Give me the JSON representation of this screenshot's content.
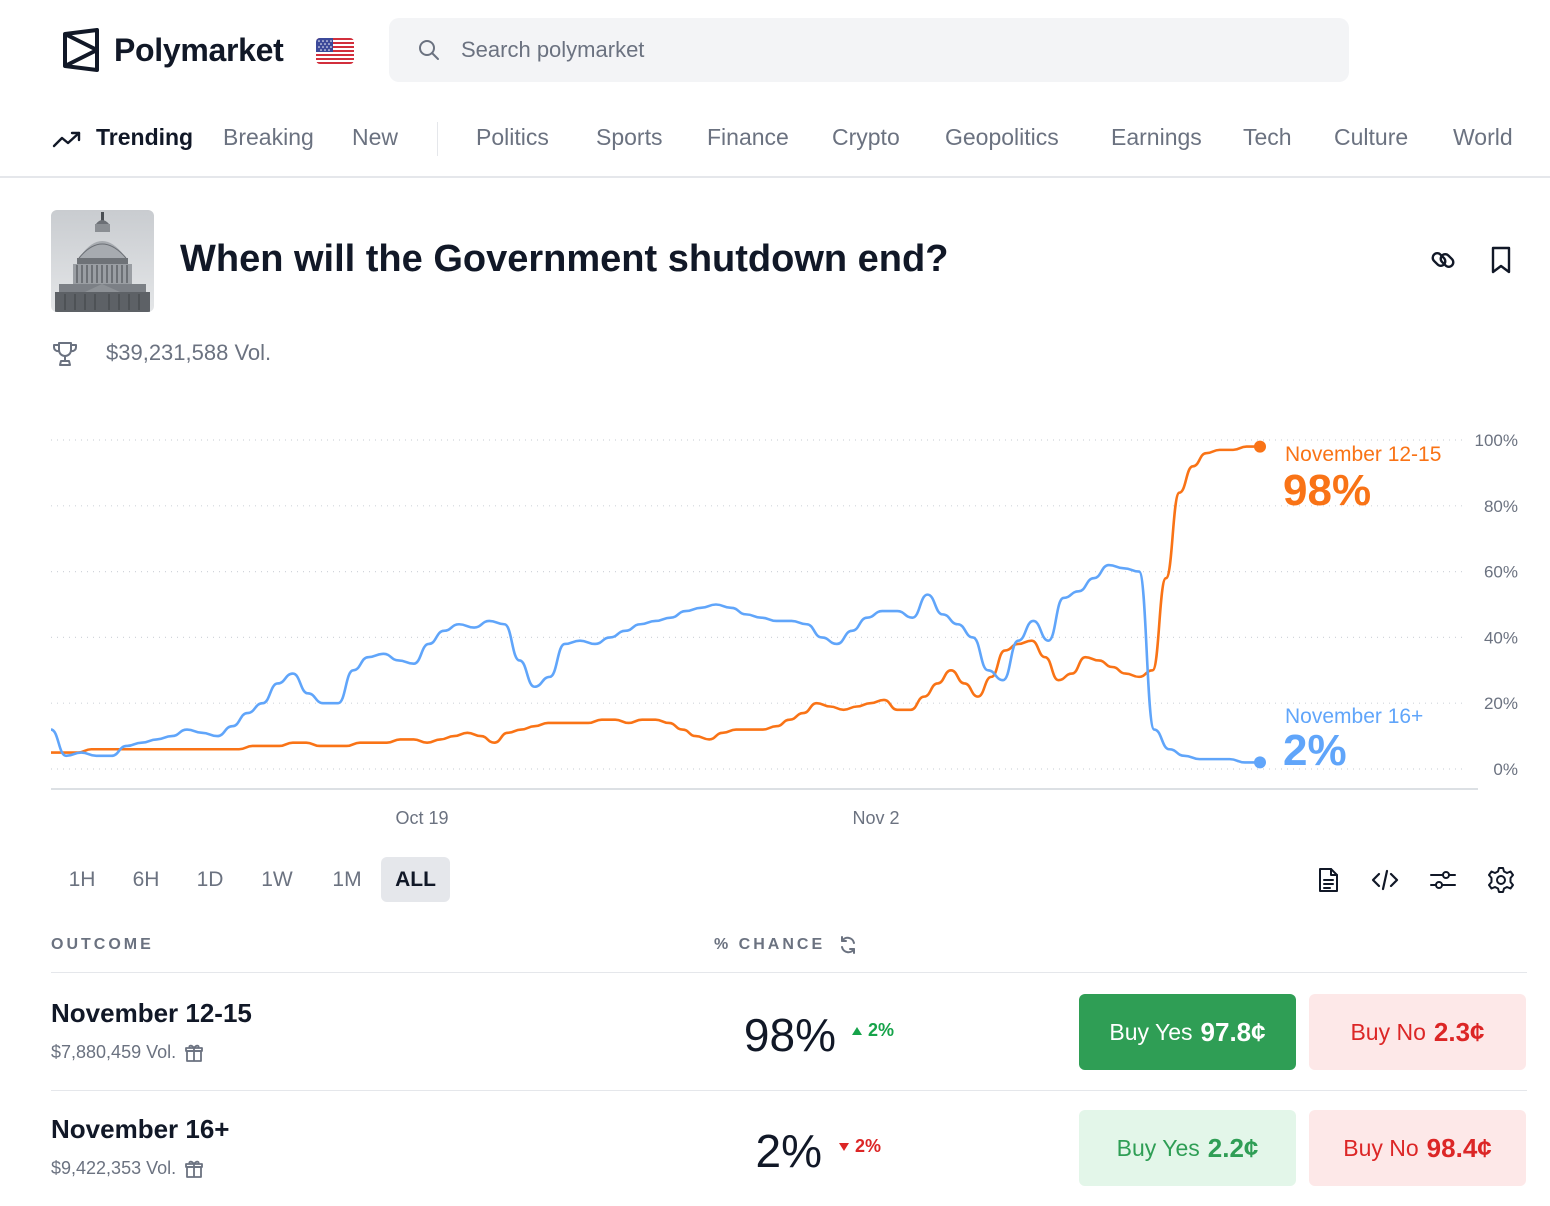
{
  "header": {
    "brand": "Polymarket",
    "search_placeholder": "Search polymarket"
  },
  "nav": {
    "items": [
      {
        "label": "Trending"
      },
      {
        "label": "Breaking"
      },
      {
        "label": "New"
      },
      {
        "label": "Politics"
      },
      {
        "label": "Sports"
      },
      {
        "label": "Finance"
      },
      {
        "label": "Crypto"
      },
      {
        "label": "Geopolitics"
      },
      {
        "label": "Earnings"
      },
      {
        "label": "Tech"
      },
      {
        "label": "Culture"
      },
      {
        "label": "World"
      }
    ]
  },
  "event": {
    "title": "When will the Government shutdown end?",
    "volume": "$39,231,588 Vol."
  },
  "chart_data": {
    "type": "line",
    "x_ticks": [
      "Oct 19",
      "Nov 2"
    ],
    "y_ticks": [
      "100%",
      "80%",
      "60%",
      "40%",
      "20%",
      "0%"
    ],
    "ylim": [
      0,
      100
    ],
    "grid": true,
    "colors": {
      "November 12-15": "#f97316",
      "November 16+": "#60a5fa"
    },
    "series": [
      {
        "name": "November 12-15",
        "current_label": "98%",
        "values": [
          5,
          5,
          5,
          6,
          6,
          6,
          6,
          6,
          6,
          6,
          6,
          6,
          6,
          6,
          6,
          7,
          7,
          7,
          8,
          8,
          7,
          7,
          7,
          8,
          8,
          8,
          9,
          9,
          8,
          9,
          10,
          11,
          10,
          8,
          11,
          12,
          13,
          14,
          14,
          14,
          14,
          15,
          15,
          14,
          15,
          15,
          14,
          12,
          10,
          9,
          11,
          12,
          12,
          12,
          13,
          15,
          17,
          20,
          19,
          18,
          19,
          20,
          21,
          18,
          18,
          22,
          26,
          30,
          26,
          22,
          28,
          36,
          38,
          39,
          34,
          27,
          29,
          34,
          33,
          31,
          29,
          28,
          30,
          58,
          84,
          92,
          96,
          97,
          97,
          98,
          98
        ]
      },
      {
        "name": "November 16+",
        "current_label": "2%",
        "values": [
          12,
          4,
          5,
          4,
          4,
          7,
          8,
          9,
          10,
          12,
          11,
          10,
          13,
          17,
          20,
          26,
          29,
          23,
          20,
          20,
          30,
          34,
          35,
          33,
          32,
          38,
          42,
          44,
          43,
          45,
          44,
          33,
          25,
          28,
          38,
          39,
          38,
          40,
          42,
          44,
          45,
          46,
          48,
          49,
          50,
          49,
          47,
          46,
          45,
          45,
          44,
          40,
          38,
          42,
          46,
          48,
          48,
          46,
          53,
          47,
          44,
          40,
          30,
          27,
          39,
          45,
          39,
          52,
          54,
          58,
          62,
          61,
          60,
          12,
          6,
          4,
          3,
          3,
          3,
          2,
          2
        ]
      }
    ]
  },
  "range_tabs": [
    "1H",
    "6H",
    "1D",
    "1W",
    "1M",
    "ALL"
  ],
  "table": {
    "outcome_header": "OUTCOME",
    "chance_header": "% CHANCE",
    "rows": [
      {
        "name": "November 12-15",
        "volume": "$7,880,459 Vol.",
        "pct": "98%",
        "change": "2%",
        "direction": "up",
        "buy_yes_label": "Buy Yes",
        "buy_yes_price": "97.8¢",
        "buy_no_label": "Buy No",
        "buy_no_price": "2.3¢"
      },
      {
        "name": "November 16+",
        "volume": "$9,422,353 Vol.",
        "pct": "2%",
        "change": "2%",
        "direction": "down",
        "buy_yes_label": "Buy Yes",
        "buy_yes_price": "2.2¢",
        "buy_no_label": "Buy No",
        "buy_no_price": "98.4¢"
      }
    ]
  },
  "colors": {
    "up": "#16a34a",
    "down": "#dc2626",
    "buy_yes_active": "#2f9e55",
    "buy_yes_muted": "#e3f6e9",
    "buy_no": "#fde8e8"
  }
}
